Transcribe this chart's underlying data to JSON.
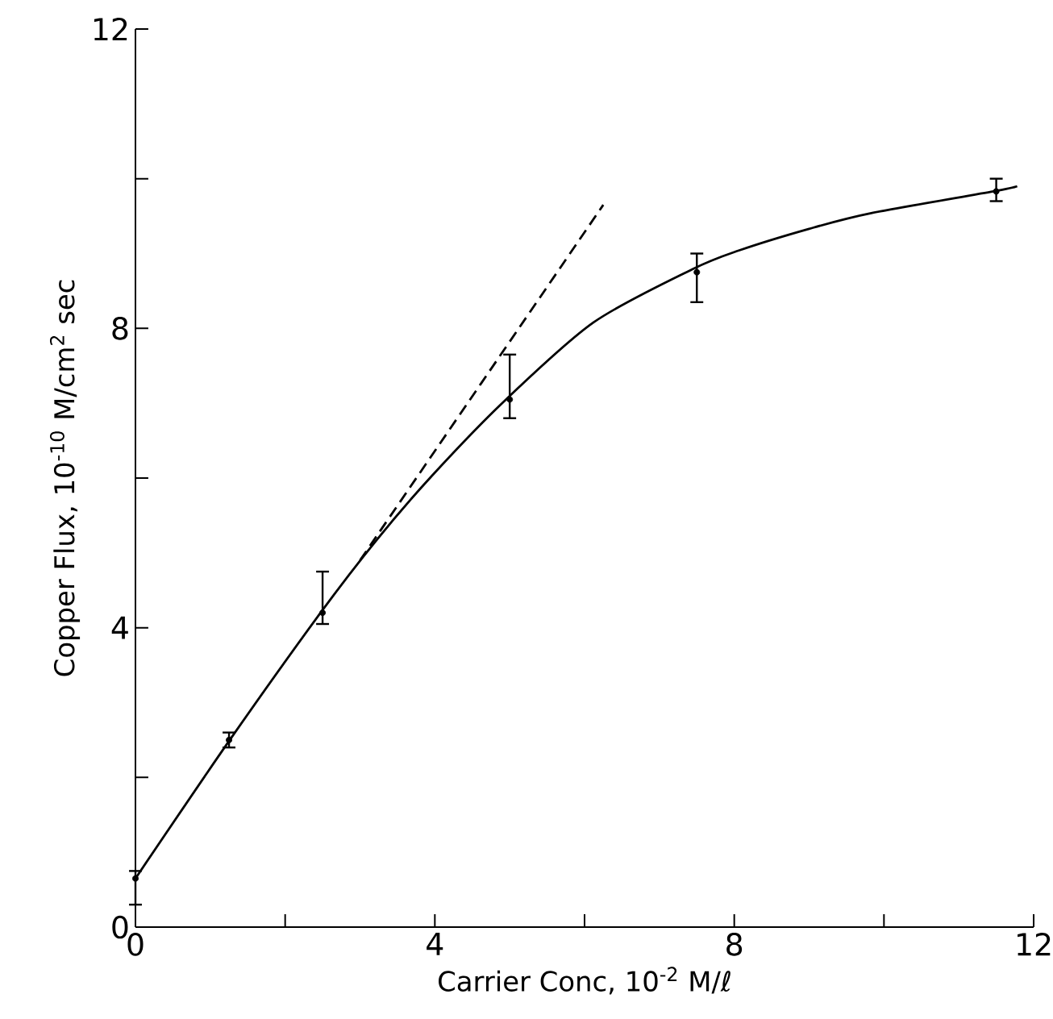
{
  "chart_data": {
    "type": "line",
    "xlabel": "Carrier Conc, 10$^{-2}$ M/ℓ",
    "ylabel": "Copper Flux, 10$^{-10}$ M/cm$^{2}$ sec",
    "xlim": [
      0,
      12
    ],
    "ylim": [
      0,
      12
    ],
    "xticks": [
      0,
      {
        "value": 2,
        "label": null
      },
      4,
      {
        "value": 6,
        "label": null
      },
      8,
      {
        "value": 10,
        "label": null
      },
      12
    ],
    "yticks": [
      0,
      {
        "value": 2,
        "label": null
      },
      4,
      {
        "value": 6,
        "label": null
      },
      8,
      {
        "value": 10,
        "label": null
      },
      12
    ],
    "series": [
      {
        "type": "scatter",
        "color": "#000000",
        "marker": "circle",
        "x": [
          0,
          1.25,
          2.5,
          5,
          7.5,
          11.5
        ],
        "values": [
          0.65,
          2.5,
          4.2,
          7.05,
          8.75,
          9.83
        ],
        "errors": [
          [
            0.3,
            0.75
          ],
          [
            2.4,
            2.6
          ],
          [
            4.05,
            4.75
          ],
          [
            6.8,
            7.65
          ],
          [
            8.35,
            9.0
          ],
          [
            9.7,
            10.0
          ]
        ]
      },
      {
        "color": "#000000",
        "line_style": "solid",
        "x": [
          0,
          1.26,
          2.48,
          3.22,
          3.97,
          4.94,
          6.12,
          7.44,
          8.06,
          9.0,
          9.83,
          11.46,
          11.78
        ],
        "values": [
          0.65,
          2.5,
          4.21,
          5.17,
          6.04,
          7.04,
          8.08,
          8.79,
          9.04,
          9.33,
          9.54,
          9.83,
          9.9
        ]
      },
      {
        "color": "#000000",
        "line_style": "dashed",
        "x": [
          3.0,
          6.25
        ],
        "values": [
          4.9,
          9.65
        ]
      }
    ]
  }
}
